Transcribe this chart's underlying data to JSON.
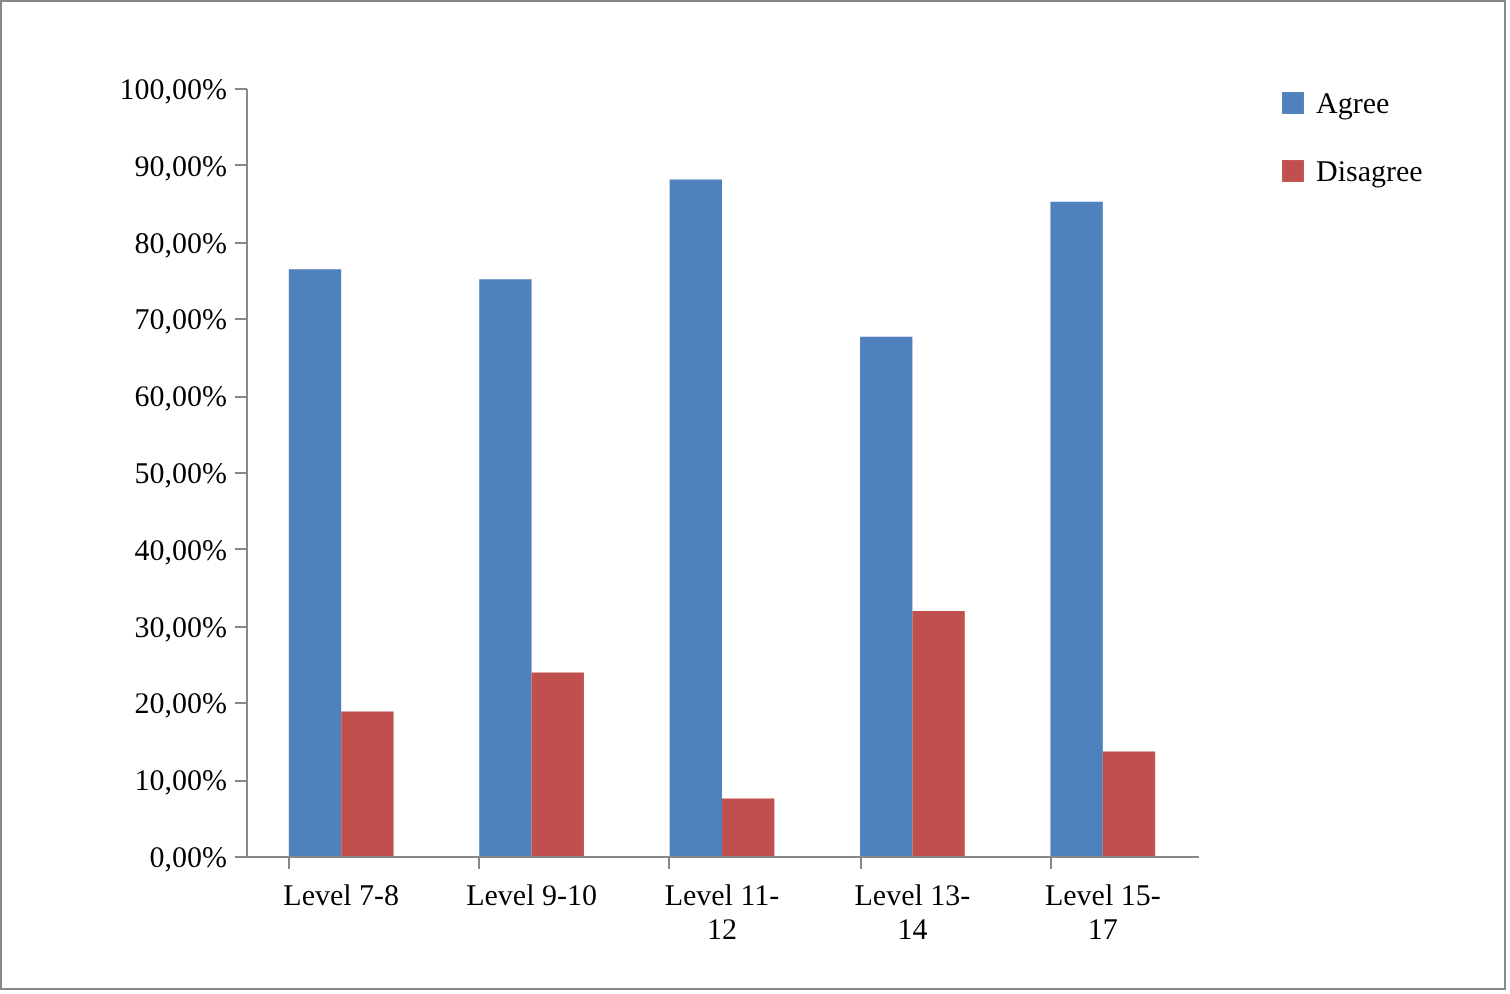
{
  "chart_data": {
    "type": "bar",
    "categories": [
      "Level 7-8",
      "Level 9-10",
      "Level 11-12",
      "Level 13-14",
      "Level 15-17"
    ],
    "series": [
      {
        "name": "Agree",
        "color": "#4f81bd",
        "values": [
          76.4,
          75.1,
          88.1,
          67.6,
          85.2
        ]
      },
      {
        "name": "Disagree",
        "color": "#c0504d",
        "values": [
          18.8,
          23.9,
          7.5,
          31.9,
          13.6
        ]
      }
    ],
    "ylim": [
      0,
      100
    ],
    "yticks": [
      {
        "value": 0,
        "label": "0,00%"
      },
      {
        "value": 10,
        "label": "10,00%"
      },
      {
        "value": 20,
        "label": "20,00%"
      },
      {
        "value": 30,
        "label": "30,00%"
      },
      {
        "value": 40,
        "label": "40,00%"
      },
      {
        "value": 50,
        "label": "50,00%"
      },
      {
        "value": 60,
        "label": "60,00%"
      },
      {
        "value": 70,
        "label": "70,00%"
      },
      {
        "value": 80,
        "label": "80,00%"
      },
      {
        "value": 90,
        "label": "90,00%"
      },
      {
        "value": 100,
        "label": "100,00%"
      }
    ],
    "grid": false,
    "legend": "right"
  }
}
